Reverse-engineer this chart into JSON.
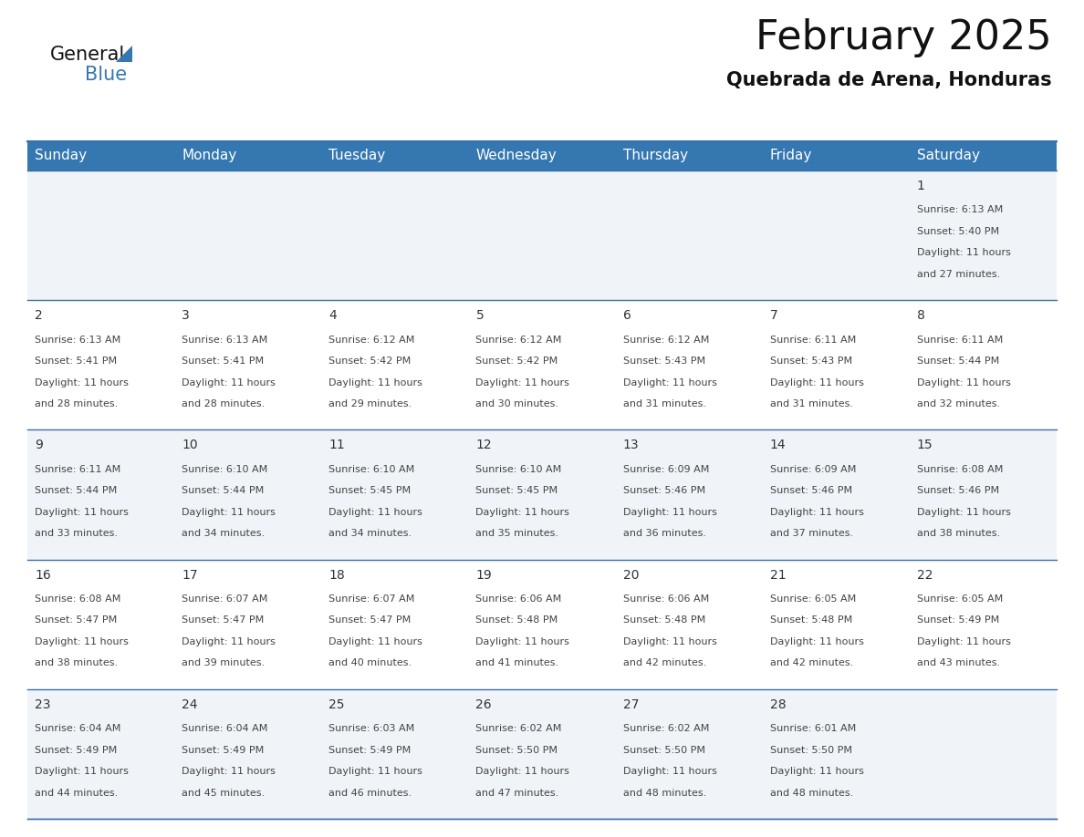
{
  "title": "February 2025",
  "subtitle": "Quebrada de Arena, Honduras",
  "header_color": "#3577b0",
  "header_text_color": "#ffffff",
  "cell_bg_even": "#f0f4f8",
  "cell_bg_odd": "#ffffff",
  "border_color": "#3a6fa8",
  "day_headers": [
    "Sunday",
    "Monday",
    "Tuesday",
    "Wednesday",
    "Thursday",
    "Friday",
    "Saturday"
  ],
  "days_data": [
    {
      "day": 1,
      "col": 6,
      "row": 0,
      "sunrise": "6:13 AM",
      "sunset": "5:40 PM",
      "daylight_hours": 11,
      "daylight_minutes": 27
    },
    {
      "day": 2,
      "col": 0,
      "row": 1,
      "sunrise": "6:13 AM",
      "sunset": "5:41 PM",
      "daylight_hours": 11,
      "daylight_minutes": 28
    },
    {
      "day": 3,
      "col": 1,
      "row": 1,
      "sunrise": "6:13 AM",
      "sunset": "5:41 PM",
      "daylight_hours": 11,
      "daylight_minutes": 28
    },
    {
      "day": 4,
      "col": 2,
      "row": 1,
      "sunrise": "6:12 AM",
      "sunset": "5:42 PM",
      "daylight_hours": 11,
      "daylight_minutes": 29
    },
    {
      "day": 5,
      "col": 3,
      "row": 1,
      "sunrise": "6:12 AM",
      "sunset": "5:42 PM",
      "daylight_hours": 11,
      "daylight_minutes": 30
    },
    {
      "day": 6,
      "col": 4,
      "row": 1,
      "sunrise": "6:12 AM",
      "sunset": "5:43 PM",
      "daylight_hours": 11,
      "daylight_minutes": 31
    },
    {
      "day": 7,
      "col": 5,
      "row": 1,
      "sunrise": "6:11 AM",
      "sunset": "5:43 PM",
      "daylight_hours": 11,
      "daylight_minutes": 31
    },
    {
      "day": 8,
      "col": 6,
      "row": 1,
      "sunrise": "6:11 AM",
      "sunset": "5:44 PM",
      "daylight_hours": 11,
      "daylight_minutes": 32
    },
    {
      "day": 9,
      "col": 0,
      "row": 2,
      "sunrise": "6:11 AM",
      "sunset": "5:44 PM",
      "daylight_hours": 11,
      "daylight_minutes": 33
    },
    {
      "day": 10,
      "col": 1,
      "row": 2,
      "sunrise": "6:10 AM",
      "sunset": "5:44 PM",
      "daylight_hours": 11,
      "daylight_minutes": 34
    },
    {
      "day": 11,
      "col": 2,
      "row": 2,
      "sunrise": "6:10 AM",
      "sunset": "5:45 PM",
      "daylight_hours": 11,
      "daylight_minutes": 34
    },
    {
      "day": 12,
      "col": 3,
      "row": 2,
      "sunrise": "6:10 AM",
      "sunset": "5:45 PM",
      "daylight_hours": 11,
      "daylight_minutes": 35
    },
    {
      "day": 13,
      "col": 4,
      "row": 2,
      "sunrise": "6:09 AM",
      "sunset": "5:46 PM",
      "daylight_hours": 11,
      "daylight_minutes": 36
    },
    {
      "day": 14,
      "col": 5,
      "row": 2,
      "sunrise": "6:09 AM",
      "sunset": "5:46 PM",
      "daylight_hours": 11,
      "daylight_minutes": 37
    },
    {
      "day": 15,
      "col": 6,
      "row": 2,
      "sunrise": "6:08 AM",
      "sunset": "5:46 PM",
      "daylight_hours": 11,
      "daylight_minutes": 38
    },
    {
      "day": 16,
      "col": 0,
      "row": 3,
      "sunrise": "6:08 AM",
      "sunset": "5:47 PM",
      "daylight_hours": 11,
      "daylight_minutes": 38
    },
    {
      "day": 17,
      "col": 1,
      "row": 3,
      "sunrise": "6:07 AM",
      "sunset": "5:47 PM",
      "daylight_hours": 11,
      "daylight_minutes": 39
    },
    {
      "day": 18,
      "col": 2,
      "row": 3,
      "sunrise": "6:07 AM",
      "sunset": "5:47 PM",
      "daylight_hours": 11,
      "daylight_minutes": 40
    },
    {
      "day": 19,
      "col": 3,
      "row": 3,
      "sunrise": "6:06 AM",
      "sunset": "5:48 PM",
      "daylight_hours": 11,
      "daylight_minutes": 41
    },
    {
      "day": 20,
      "col": 4,
      "row": 3,
      "sunrise": "6:06 AM",
      "sunset": "5:48 PM",
      "daylight_hours": 11,
      "daylight_minutes": 42
    },
    {
      "day": 21,
      "col": 5,
      "row": 3,
      "sunrise": "6:05 AM",
      "sunset": "5:48 PM",
      "daylight_hours": 11,
      "daylight_minutes": 42
    },
    {
      "day": 22,
      "col": 6,
      "row": 3,
      "sunrise": "6:05 AM",
      "sunset": "5:49 PM",
      "daylight_hours": 11,
      "daylight_minutes": 43
    },
    {
      "day": 23,
      "col": 0,
      "row": 4,
      "sunrise": "6:04 AM",
      "sunset": "5:49 PM",
      "daylight_hours": 11,
      "daylight_minutes": 44
    },
    {
      "day": 24,
      "col": 1,
      "row": 4,
      "sunrise": "6:04 AM",
      "sunset": "5:49 PM",
      "daylight_hours": 11,
      "daylight_minutes": 45
    },
    {
      "day": 25,
      "col": 2,
      "row": 4,
      "sunrise": "6:03 AM",
      "sunset": "5:49 PM",
      "daylight_hours": 11,
      "daylight_minutes": 46
    },
    {
      "day": 26,
      "col": 3,
      "row": 4,
      "sunrise": "6:02 AM",
      "sunset": "5:50 PM",
      "daylight_hours": 11,
      "daylight_minutes": 47
    },
    {
      "day": 27,
      "col": 4,
      "row": 4,
      "sunrise": "6:02 AM",
      "sunset": "5:50 PM",
      "daylight_hours": 11,
      "daylight_minutes": 48
    },
    {
      "day": 28,
      "col": 5,
      "row": 4,
      "sunrise": "6:01 AM",
      "sunset": "5:50 PM",
      "daylight_hours": 11,
      "daylight_minutes": 48
    }
  ],
  "num_rows": 5,
  "num_cols": 7,
  "title_fontsize": 32,
  "subtitle_fontsize": 15,
  "header_fontsize": 11,
  "day_number_fontsize": 10,
  "cell_text_fontsize": 8
}
